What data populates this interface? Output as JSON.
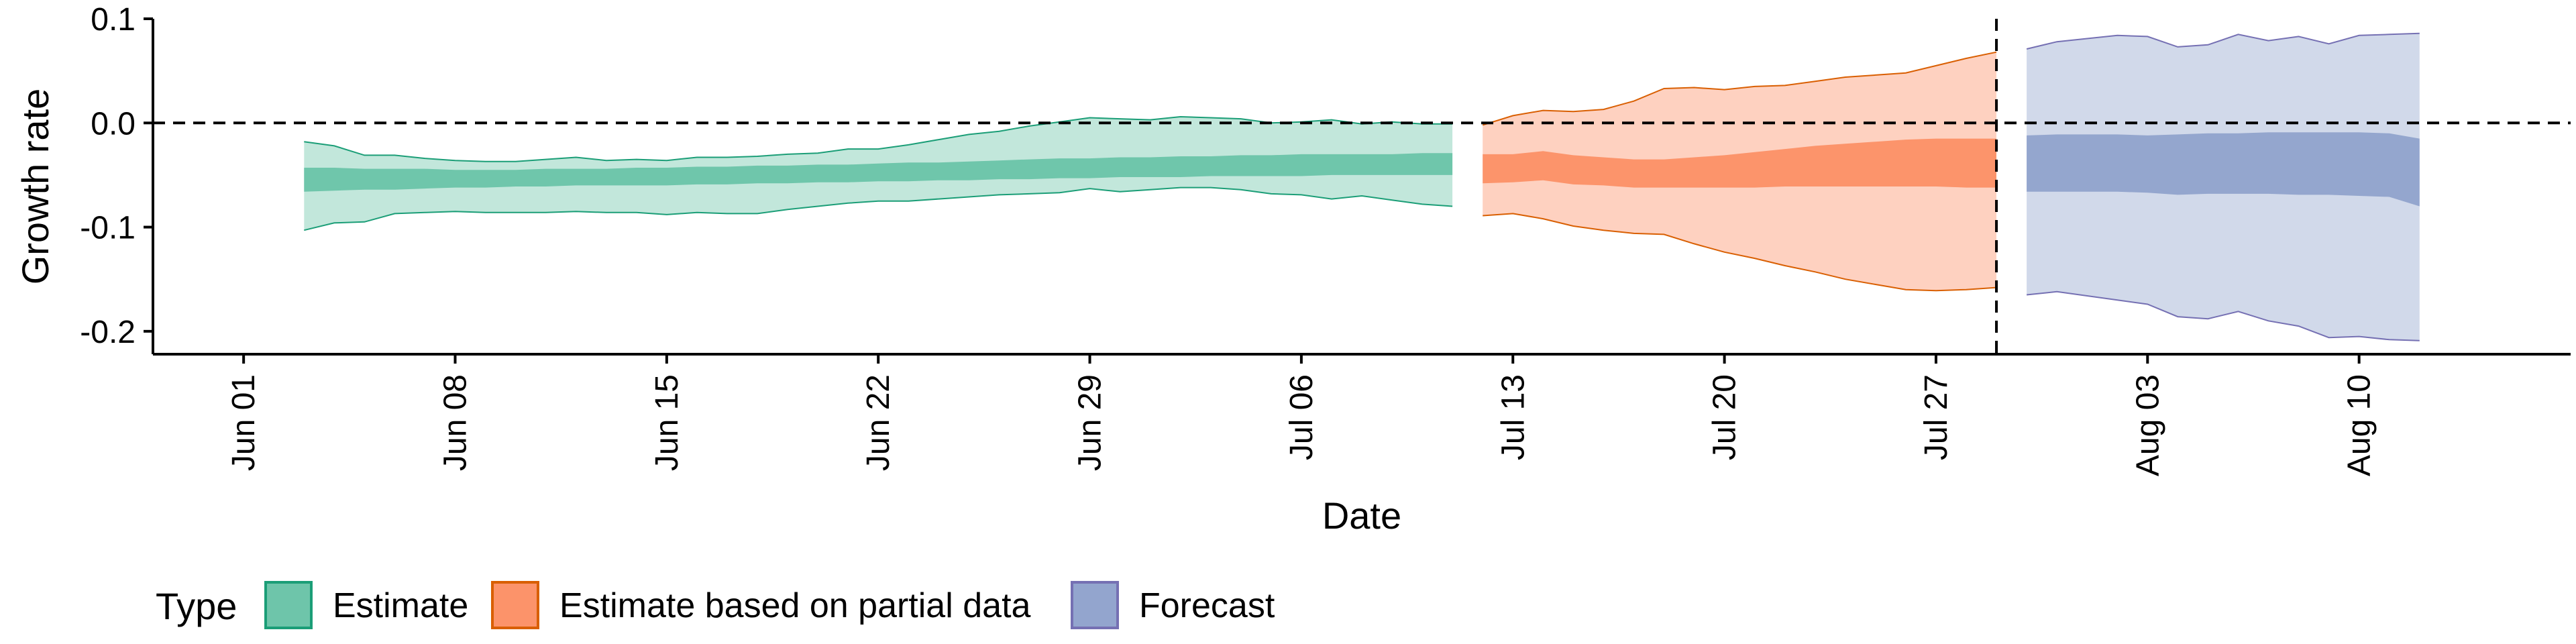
{
  "chart_data": {
    "type": "area",
    "xlabel": "Date",
    "ylabel": "Growth rate",
    "xlim": [
      "2020-05-29",
      "2020-08-17"
    ],
    "ylim": [
      -0.222,
      0.1
    ],
    "y_ticks": [
      0.1,
      0.0,
      -0.1,
      -0.2
    ],
    "y_tick_labels": [
      "0.1",
      "0.0",
      "-0.1",
      "-0.2"
    ],
    "x_ticks": [
      "2020-06-01",
      "2020-06-08",
      "2020-06-15",
      "2020-06-22",
      "2020-06-29",
      "2020-07-06",
      "2020-07-13",
      "2020-07-20",
      "2020-07-27",
      "2020-08-03",
      "2020-08-10"
    ],
    "x_tick_labels": [
      "Jun 01",
      "Jun 08",
      "Jun 15",
      "Jun 22",
      "Jun 29",
      "Jul 06",
      "Jul 13",
      "Jul 20",
      "Jul 27",
      "Aug 03",
      "Aug 10"
    ],
    "reference_lines": {
      "horizontal_y": 0,
      "vertical_x": "2020-07-29"
    },
    "grid": false,
    "legend_position": "bottom-left",
    "legend": {
      "title": "Type",
      "entries": [
        "Estimate",
        "Estimate based on partial data",
        "Forecast"
      ]
    },
    "colors": {
      "estimate_fill": "#66c2a5",
      "estimate_line": "#1b9e77",
      "partial_fill": "#fc8d62",
      "partial_line": "#d95f02",
      "forecast_fill": "#8da0cb",
      "forecast_line": "#7570b3"
    },
    "series": [
      {
        "name": "Estimate",
        "x": [
          "2020-06-03",
          "2020-06-04",
          "2020-06-05",
          "2020-06-06",
          "2020-06-07",
          "2020-06-08",
          "2020-06-09",
          "2020-06-10",
          "2020-06-11",
          "2020-06-12",
          "2020-06-13",
          "2020-06-14",
          "2020-06-15",
          "2020-06-16",
          "2020-06-17",
          "2020-06-18",
          "2020-06-19",
          "2020-06-20",
          "2020-06-21",
          "2020-06-22",
          "2020-06-23",
          "2020-06-24",
          "2020-06-25",
          "2020-06-26",
          "2020-06-27",
          "2020-06-28",
          "2020-06-29",
          "2020-06-30",
          "2020-07-01",
          "2020-07-02",
          "2020-07-03",
          "2020-07-04",
          "2020-07-05",
          "2020-07-06",
          "2020-07-07",
          "2020-07-08",
          "2020-07-09",
          "2020-07-10",
          "2020-07-11"
        ],
        "lower90": [
          -0.103,
          -0.096,
          -0.095,
          -0.087,
          -0.086,
          -0.085,
          -0.086,
          -0.086,
          -0.086,
          -0.085,
          -0.086,
          -0.086,
          -0.088,
          -0.086,
          -0.087,
          -0.087,
          -0.083,
          -0.08,
          -0.077,
          -0.075,
          -0.075,
          -0.073,
          -0.071,
          -0.069,
          -0.068,
          -0.067,
          -0.063,
          -0.066,
          -0.064,
          -0.062,
          -0.062,
          -0.064,
          -0.068,
          -0.069,
          -0.073,
          -0.07,
          -0.074,
          -0.078,
          -0.08
        ],
        "lower50": [
          -0.066,
          -0.065,
          -0.064,
          -0.064,
          -0.063,
          -0.062,
          -0.062,
          -0.061,
          -0.061,
          -0.06,
          -0.06,
          -0.06,
          -0.06,
          -0.059,
          -0.059,
          -0.058,
          -0.058,
          -0.057,
          -0.057,
          -0.056,
          -0.056,
          -0.055,
          -0.055,
          -0.054,
          -0.054,
          -0.053,
          -0.053,
          -0.052,
          -0.052,
          -0.052,
          -0.051,
          -0.051,
          -0.051,
          -0.051,
          -0.05,
          -0.05,
          -0.05,
          -0.05,
          -0.05
        ],
        "upper50": [
          -0.043,
          -0.043,
          -0.044,
          -0.044,
          -0.044,
          -0.045,
          -0.045,
          -0.045,
          -0.044,
          -0.044,
          -0.044,
          -0.043,
          -0.043,
          -0.042,
          -0.042,
          -0.041,
          -0.041,
          -0.04,
          -0.04,
          -0.039,
          -0.038,
          -0.038,
          -0.037,
          -0.036,
          -0.035,
          -0.034,
          -0.034,
          -0.033,
          -0.033,
          -0.032,
          -0.032,
          -0.031,
          -0.031,
          -0.03,
          -0.03,
          -0.03,
          -0.03,
          -0.029,
          -0.029
        ],
        "upper90": [
          -0.018,
          -0.022,
          -0.031,
          -0.031,
          -0.034,
          -0.036,
          -0.037,
          -0.037,
          -0.035,
          -0.033,
          -0.036,
          -0.035,
          -0.036,
          -0.033,
          -0.033,
          -0.032,
          -0.03,
          -0.029,
          -0.025,
          -0.025,
          -0.021,
          -0.016,
          -0.011,
          -0.008,
          -0.003,
          0.001,
          0.005,
          0.004,
          0.003,
          0.006,
          0.005,
          0.004,
          0.0,
          0.001,
          0.003,
          -0.001,
          0.001,
          -0.001,
          -0.001
        ]
      },
      {
        "name": "Estimate based on partial data",
        "x": [
          "2020-07-12",
          "2020-07-13",
          "2020-07-14",
          "2020-07-15",
          "2020-07-16",
          "2020-07-17",
          "2020-07-18",
          "2020-07-19",
          "2020-07-20",
          "2020-07-21",
          "2020-07-22",
          "2020-07-23",
          "2020-07-24",
          "2020-07-25",
          "2020-07-26",
          "2020-07-27",
          "2020-07-28",
          "2020-07-29"
        ],
        "lower90": [
          -0.089,
          -0.087,
          -0.092,
          -0.099,
          -0.103,
          -0.106,
          -0.107,
          -0.116,
          -0.124,
          -0.13,
          -0.137,
          -0.143,
          -0.15,
          -0.155,
          -0.16,
          -0.161,
          -0.16,
          -0.158
        ],
        "lower50": [
          -0.058,
          -0.057,
          -0.055,
          -0.059,
          -0.06,
          -0.062,
          -0.062,
          -0.062,
          -0.062,
          -0.062,
          -0.061,
          -0.061,
          -0.061,
          -0.061,
          -0.061,
          -0.061,
          -0.062,
          -0.062
        ],
        "upper50": [
          -0.03,
          -0.03,
          -0.027,
          -0.031,
          -0.033,
          -0.035,
          -0.035,
          -0.033,
          -0.031,
          -0.028,
          -0.025,
          -0.022,
          -0.02,
          -0.018,
          -0.016,
          -0.015,
          -0.015,
          -0.015
        ],
        "upper90": [
          -0.002,
          0.007,
          0.012,
          0.011,
          0.013,
          0.021,
          0.033,
          0.034,
          0.032,
          0.035,
          0.036,
          0.04,
          0.044,
          0.046,
          0.048,
          0.055,
          0.062,
          0.068
        ]
      },
      {
        "name": "Forecast",
        "x": [
          "2020-07-30",
          "2020-07-31",
          "2020-08-01",
          "2020-08-02",
          "2020-08-03",
          "2020-08-04",
          "2020-08-05",
          "2020-08-06",
          "2020-08-07",
          "2020-08-08",
          "2020-08-09",
          "2020-08-10",
          "2020-08-11",
          "2020-08-12"
        ],
        "lower90": [
          -0.165,
          -0.162,
          -0.166,
          -0.17,
          -0.174,
          -0.186,
          -0.188,
          -0.181,
          -0.19,
          -0.195,
          -0.206,
          -0.205,
          -0.208,
          -0.209
        ],
        "lower50": [
          -0.066,
          -0.066,
          -0.066,
          -0.066,
          -0.067,
          -0.069,
          -0.068,
          -0.068,
          -0.068,
          -0.069,
          -0.069,
          -0.07,
          -0.071,
          -0.08
        ],
        "upper50": [
          -0.012,
          -0.011,
          -0.011,
          -0.011,
          -0.012,
          -0.011,
          -0.01,
          -0.01,
          -0.009,
          -0.009,
          -0.009,
          -0.009,
          -0.01,
          -0.015
        ],
        "upper90": [
          0.071,
          0.078,
          0.081,
          0.084,
          0.083,
          0.073,
          0.075,
          0.085,
          0.079,
          0.083,
          0.076,
          0.084,
          0.085,
          0.086
        ]
      }
    ]
  }
}
